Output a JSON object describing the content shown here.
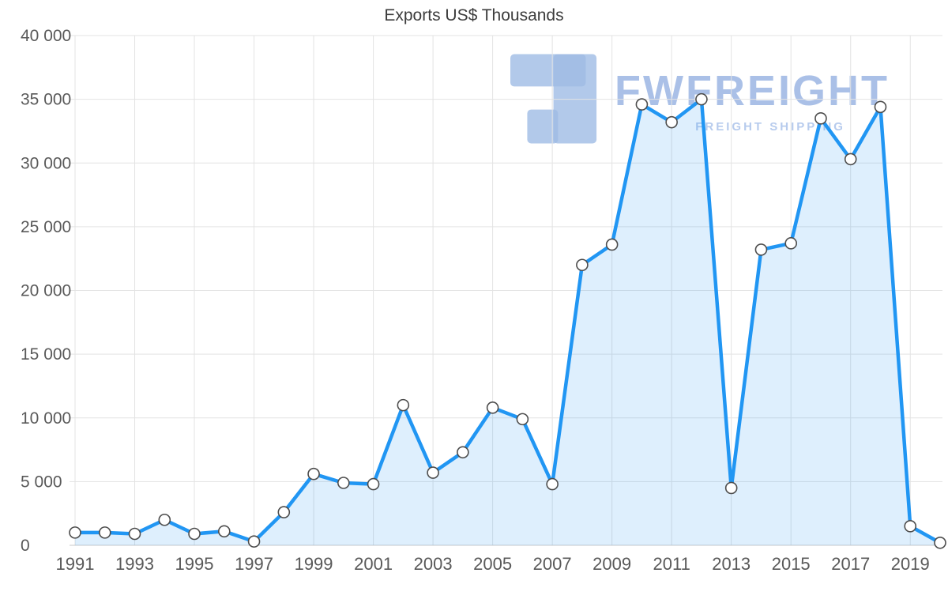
{
  "chart_data": {
    "type": "area",
    "title": "Exports US$ Thousands",
    "xlabel": "",
    "ylabel": "",
    "x": [
      1991,
      1992,
      1993,
      1994,
      1995,
      1996,
      1997,
      1998,
      1999,
      2000,
      2001,
      2002,
      2003,
      2004,
      2005,
      2006,
      2007,
      2008,
      2009,
      2010,
      2011,
      2012,
      2013,
      2014,
      2015,
      2016,
      2017,
      2018,
      2019,
      2020
    ],
    "values": [
      1000,
      1000,
      900,
      2000,
      900,
      1100,
      300,
      2600,
      5600,
      4900,
      4800,
      11000,
      5700,
      7300,
      10800,
      9900,
      4800,
      22000,
      23600,
      34600,
      33200,
      35000,
      4500,
      23200,
      23700,
      33500,
      30300,
      34400,
      1500,
      200
    ],
    "ylim": [
      0,
      40000
    ],
    "ytick_interval": 5000,
    "ytick_labels": [
      "0",
      "5 000",
      "10 000",
      "15 000",
      "20 000",
      "25 000",
      "30 000",
      "35 000",
      "40 000"
    ],
    "xtick_labels": [
      "1991",
      "1993",
      "1995",
      "1997",
      "1999",
      "2001",
      "2003",
      "2005",
      "2007",
      "2009",
      "2011",
      "2013",
      "2015",
      "2017",
      "2019"
    ],
    "xticks_every": 2,
    "grid": true,
    "legend": "none",
    "colors": {
      "line": "#2196f3",
      "fill": "rgba(33,150,243,0.15)",
      "marker_fill": "#ffffff",
      "marker_stroke": "#4d4d4d",
      "grid": "#e3e3e3",
      "axis": "#c9c9c9",
      "tick_text": "#595959",
      "title_text": "#3c3c3c"
    }
  },
  "watermark": {
    "brand": "FWFREIGHT",
    "tagline": "FREIGHT SHIPPING",
    "color": "#9cb6e3"
  }
}
